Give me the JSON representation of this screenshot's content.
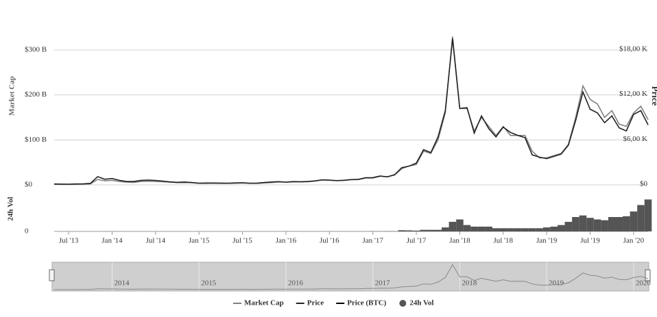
{
  "chart_data": [
    {
      "type": "line",
      "x": [
        "2013-05",
        "2013-06",
        "2013-07",
        "2013-08",
        "2013-09",
        "2013-10",
        "2013-11",
        "2013-12",
        "2014-01",
        "2014-02",
        "2014-03",
        "2014-04",
        "2014-05",
        "2014-06",
        "2014-07",
        "2014-08",
        "2014-09",
        "2014-10",
        "2014-11",
        "2014-12",
        "2015-01",
        "2015-02",
        "2015-03",
        "2015-04",
        "2015-05",
        "2015-06",
        "2015-07",
        "2015-08",
        "2015-09",
        "2015-10",
        "2015-11",
        "2015-12",
        "2016-01",
        "2016-02",
        "2016-03",
        "2016-04",
        "2016-05",
        "2016-06",
        "2016-07",
        "2016-08",
        "2016-09",
        "2016-10",
        "2016-11",
        "2016-12",
        "2017-01",
        "2017-02",
        "2017-03",
        "2017-04",
        "2017-05",
        "2017-06",
        "2017-07",
        "2017-08",
        "2017-09",
        "2017-10",
        "2017-11",
        "2017-12",
        "2018-01",
        "2018-02",
        "2018-03",
        "2018-04",
        "2018-05",
        "2018-06",
        "2018-07",
        "2018-08",
        "2018-09",
        "2018-10",
        "2018-11",
        "2018-12",
        "2019-01",
        "2019-02",
        "2019-03",
        "2019-04",
        "2019-05",
        "2019-06",
        "2019-07",
        "2019-08",
        "2019-09",
        "2019-10",
        "2019-11",
        "2019-12",
        "2020-01",
        "2020-02",
        "2020-03"
      ],
      "y_label": "Market Cap",
      "y2_label": "Price",
      "ylim": [
        0,
        335
      ],
      "yticks": [
        {
          "value": 0,
          "label": "$0"
        },
        {
          "value": 100,
          "label": "$100 B"
        },
        {
          "value": 200,
          "label": "$200 B"
        },
        {
          "value": 300,
          "label": "$300 B"
        }
      ],
      "y2lim": [
        0,
        20.1
      ],
      "y2ticks": [
        {
          "value": 0,
          "label": "$0"
        },
        {
          "value": 6,
          "label": "$6,00 K"
        },
        {
          "value": 12,
          "label": "$12,00 K"
        },
        {
          "value": 18,
          "label": "$18,00 K"
        }
      ],
      "xticks": [
        {
          "value": "2013-07",
          "label": "Jul '13"
        },
        {
          "value": "2014-01",
          "label": "Jan '14"
        },
        {
          "value": "2014-07",
          "label": "Jul '14"
        },
        {
          "value": "2015-01",
          "label": "Jan '15"
        },
        {
          "value": "2015-07",
          "label": "Jul '15"
        },
        {
          "value": "2016-01",
          "label": "Jan '16"
        },
        {
          "value": "2016-07",
          "label": "Jul '16"
        },
        {
          "value": "2017-01",
          "label": "Jan '17"
        },
        {
          "value": "2017-07",
          "label": "Jul '17"
        },
        {
          "value": "2018-01",
          "label": "Jan '18"
        },
        {
          "value": "2018-07",
          "label": "Jul '18"
        },
        {
          "value": "2019-01",
          "label": "Jan '19"
        },
        {
          "value": "2019-07",
          "label": "Jul '19"
        },
        {
          "value": "2020-01",
          "label": "Jan '20"
        }
      ],
      "grid": true,
      "navigator_xticks": [
        {
          "value": "2014-01",
          "label": "2014"
        },
        {
          "value": "2015-01",
          "label": "2015"
        },
        {
          "value": "2016-01",
          "label": "2016"
        },
        {
          "value": "2017-01",
          "label": "2017"
        },
        {
          "value": "2018-01",
          "label": "2018"
        },
        {
          "value": "2019-01",
          "label": "2019"
        },
        {
          "value": "2020-01",
          "label": "2020"
        }
      ],
      "series": [
        {
          "name": "Market Cap",
          "color": "#808080",
          "values": [
            1.3,
            1.2,
            1.1,
            1.3,
            1.5,
            2.2,
            12,
            9,
            10,
            7.5,
            6,
            5.5,
            7.5,
            8,
            7.5,
            7,
            6,
            4.8,
            5,
            4.5,
            3.5,
            3.3,
            3.7,
            3.3,
            3.3,
            3.6,
            4.2,
            3.4,
            3.4,
            4.3,
            5,
            6.5,
            5.8,
            6.5,
            6.5,
            7,
            8.5,
            11,
            10.5,
            9.5,
            9.8,
            11.5,
            11.8,
            15,
            15,
            19,
            18,
            22,
            36,
            42,
            45,
            75,
            70,
            100,
            160,
            330,
            170,
            170,
            120,
            150,
            130,
            110,
            130,
            110,
            110,
            110,
            75,
            60,
            60,
            65,
            70,
            90,
            150,
            220,
            190,
            180,
            150,
            165,
            135,
            130,
            160,
            175,
            145
          ]
        },
        {
          "name": "Price",
          "color": "#222222",
          "axis": "y2",
          "values": [
            0.12,
            0.1,
            0.09,
            0.12,
            0.13,
            0.2,
            1.1,
            0.75,
            0.85,
            0.6,
            0.45,
            0.45,
            0.6,
            0.64,
            0.59,
            0.5,
            0.39,
            0.34,
            0.38,
            0.32,
            0.22,
            0.25,
            0.25,
            0.24,
            0.23,
            0.26,
            0.28,
            0.23,
            0.24,
            0.31,
            0.38,
            0.43,
            0.37,
            0.44,
            0.42,
            0.45,
            0.53,
            0.67,
            0.62,
            0.57,
            0.61,
            0.7,
            0.74,
            0.96,
            0.97,
            1.19,
            1.07,
            1.35,
            2.3,
            2.5,
            2.9,
            4.7,
            4.3,
            6.4,
            9.9,
            19.5,
            10.2,
            10.3,
            6.9,
            9.2,
            7.5,
            6.4,
            7.7,
            7.0,
            6.6,
            6.3,
            4.0,
            3.7,
            3.5,
            3.8,
            4.1,
            5.3,
            8.6,
            12.4,
            10.1,
            9.6,
            8.3,
            9.2,
            7.6,
            7.2,
            9.4,
            9.9,
            8.0
          ]
        },
        {
          "name": "Price (BTC)",
          "color": "#000000",
          "values": [
            null,
            null,
            null,
            null,
            null,
            null,
            null,
            null,
            null,
            null,
            null,
            null,
            null,
            null,
            null,
            null,
            null,
            null,
            null,
            null,
            null,
            null,
            null,
            null,
            null,
            null,
            null,
            null,
            null,
            null,
            null,
            null,
            null,
            null,
            null,
            null,
            null,
            null,
            null,
            null,
            null,
            null,
            null,
            null,
            null,
            null,
            null,
            null,
            null,
            null,
            null,
            null,
            null,
            null,
            null,
            null,
            null,
            null,
            null,
            null,
            null,
            null,
            null,
            null,
            null,
            null,
            null,
            null,
            null,
            null,
            null,
            null,
            null,
            null,
            null,
            null,
            null,
            null,
            null,
            null,
            null,
            null,
            null
          ]
        }
      ]
    },
    {
      "type": "bar",
      "x": [
        "2013-05",
        "2013-06",
        "2013-07",
        "2013-08",
        "2013-09",
        "2013-10",
        "2013-11",
        "2013-12",
        "2014-01",
        "2014-02",
        "2014-03",
        "2014-04",
        "2014-05",
        "2014-06",
        "2014-07",
        "2014-08",
        "2014-09",
        "2014-10",
        "2014-11",
        "2014-12",
        "2015-01",
        "2015-02",
        "2015-03",
        "2015-04",
        "2015-05",
        "2015-06",
        "2015-07",
        "2015-08",
        "2015-09",
        "2015-10",
        "2015-11",
        "2015-12",
        "2016-01",
        "2016-02",
        "2016-03",
        "2016-04",
        "2016-05",
        "2016-06",
        "2016-07",
        "2016-08",
        "2016-09",
        "2016-10",
        "2016-11",
        "2016-12",
        "2017-01",
        "2017-02",
        "2017-03",
        "2017-04",
        "2017-05",
        "2017-06",
        "2017-07",
        "2017-08",
        "2017-09",
        "2017-10",
        "2017-11",
        "2017-12",
        "2018-01",
        "2018-02",
        "2018-03",
        "2018-04",
        "2018-05",
        "2018-06",
        "2018-07",
        "2018-08",
        "2018-09",
        "2018-10",
        "2018-11",
        "2018-12",
        "2019-01",
        "2019-02",
        "2019-03",
        "2019-04",
        "2019-05",
        "2019-06",
        "2019-07",
        "2019-08",
        "2019-09",
        "2019-10",
        "2019-11",
        "2019-12",
        "2020-01",
        "2020-02",
        "2020-03"
      ],
      "y_label": "24h Vol",
      "ylim": [
        0,
        48
      ],
      "yticks": [
        0
      ],
      "series": [
        {
          "name": "24h Vol",
          "color": "#555555",
          "values": [
            0.02,
            0.02,
            0.02,
            0.02,
            0.02,
            0.02,
            0.02,
            0.02,
            0.03,
            0.03,
            0.03,
            0.03,
            0.03,
            0.03,
            0.03,
            0.03,
            0.03,
            0.03,
            0.03,
            0.03,
            0.03,
            0.03,
            0.03,
            0.03,
            0.03,
            0.03,
            0.03,
            0.03,
            0.03,
            0.03,
            0.03,
            0.03,
            0.08,
            0.08,
            0.08,
            0.08,
            0.08,
            0.08,
            0.08,
            0.08,
            0.08,
            0.08,
            0.08,
            0.08,
            0.2,
            0.2,
            0.3,
            0.3,
            1.5,
            1.3,
            1,
            2,
            2,
            2,
            5,
            12,
            15,
            8,
            6,
            6,
            6,
            4,
            4,
            4,
            4,
            4,
            4,
            4,
            5,
            6,
            8,
            12,
            18,
            20,
            17,
            15,
            14,
            18,
            18,
            19,
            25,
            33,
            40
          ]
        }
      ]
    }
  ]
}
